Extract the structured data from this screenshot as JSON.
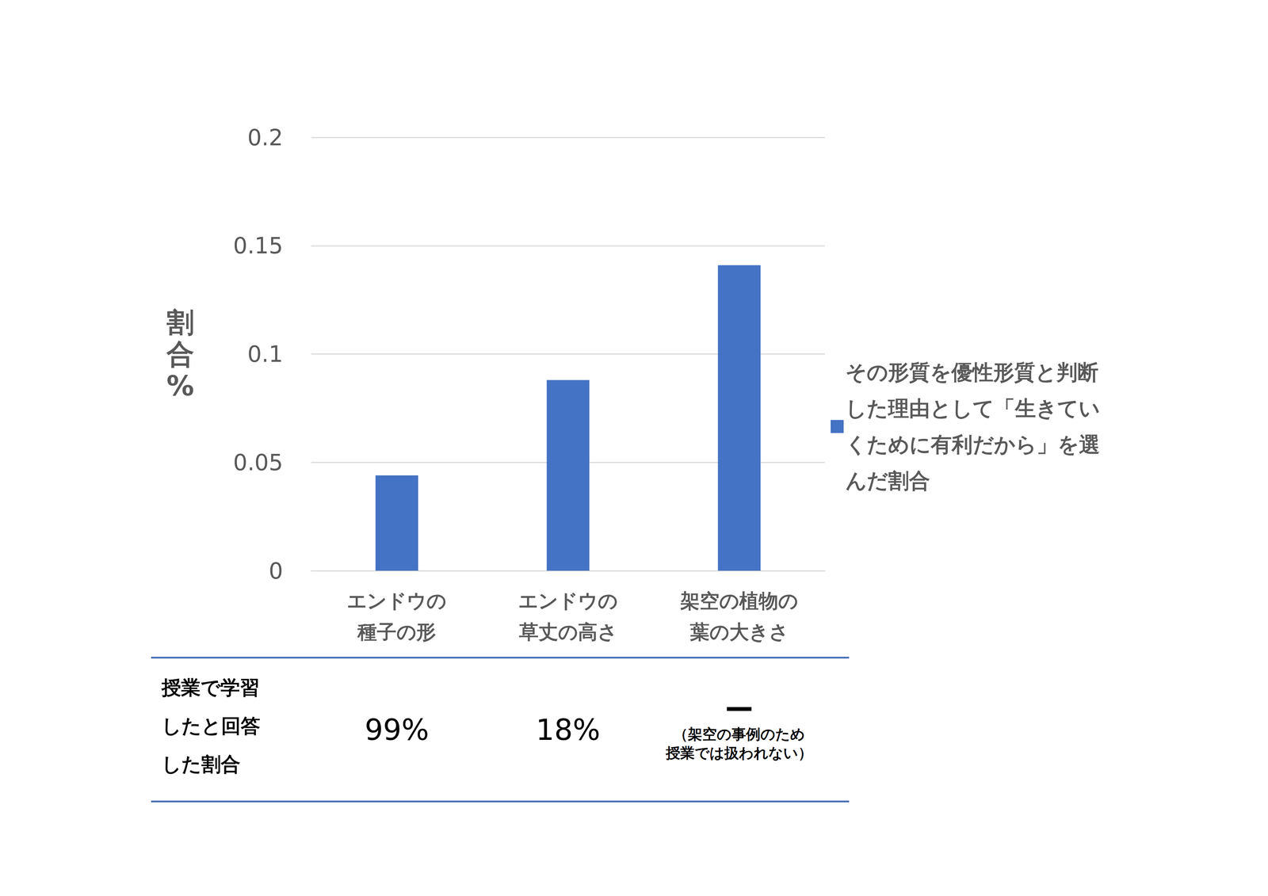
{
  "chart_data": {
    "type": "bar",
    "y_label": "割合%",
    "categories": [
      "エンドウの\n種子の形",
      "エンドウの\n草丈の高さ",
      "架空の植物の\n葉の大きさ"
    ],
    "series": [
      {
        "name": "その形質を優性形質と判断した理由として「生きていくために有利だから」を選んだ割合",
        "color": "#4472c4",
        "values": [
          0.044,
          0.088,
          0.141
        ]
      }
    ],
    "ylim": [
      0,
      0.2
    ],
    "yticks": [
      0,
      0.05,
      0.1,
      0.15,
      0.2
    ],
    "grid": true,
    "legend": "right"
  },
  "table": {
    "header": [
      "授業で学習",
      "したと回答",
      "した割合"
    ],
    "cells": [
      {
        "text": "99%"
      },
      {
        "text": "18%"
      },
      {
        "text": "ー",
        "note": [
          "（架空の事例のため",
          "授業では扱われない）"
        ]
      }
    ]
  }
}
